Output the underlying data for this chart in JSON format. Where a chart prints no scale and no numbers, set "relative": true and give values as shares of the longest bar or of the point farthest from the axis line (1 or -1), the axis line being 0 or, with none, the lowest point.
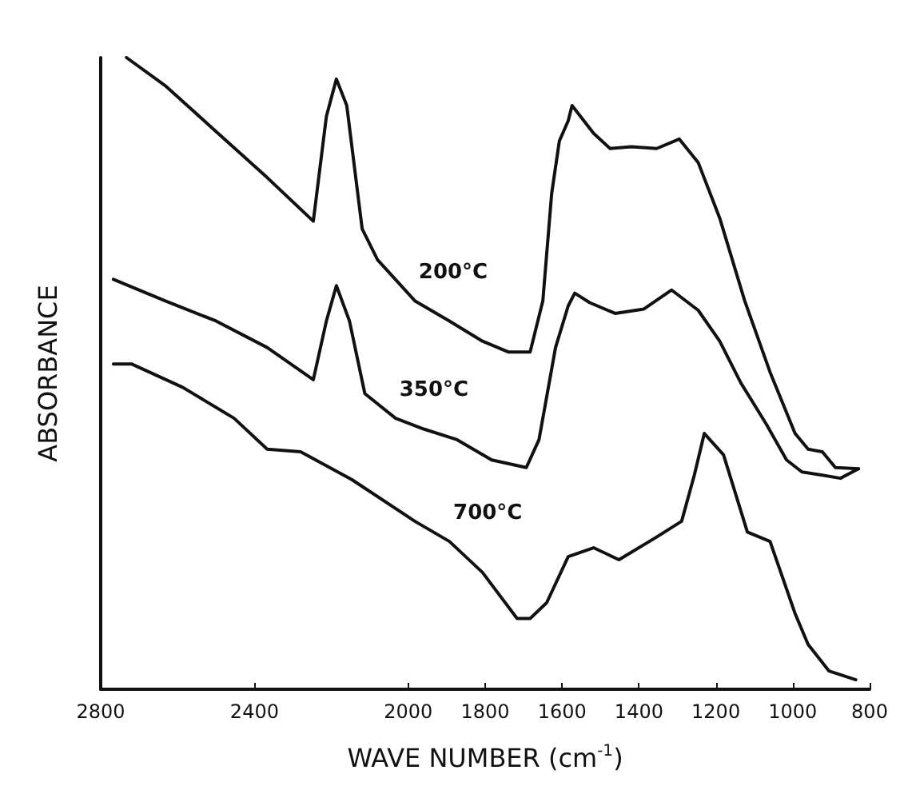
{
  "chart_data": {
    "type": "line",
    "relative": true,
    "xlabel": "WAVE NUMBER (cm$^{-1}$)",
    "ylabel": "ABSORBANCE",
    "xlim": [
      2800,
      800
    ],
    "xticks": [
      2800,
      2400,
      2000,
      1800,
      1600,
      1400,
      1200,
      1000,
      800
    ],
    "grid": false,
    "legend": false,
    "marker": "none",
    "line_style": "solid",
    "series": [
      {
        "name": "200°C",
        "color": "#111111",
        "x": [
          2733,
          2633,
          2500,
          2367,
          2247,
          2213,
          2187,
          2160,
          2120,
          2080,
          1983,
          1893,
          1807,
          1740,
          1683,
          1650,
          1627,
          1607,
          1584,
          1574,
          1518,
          1475,
          1420,
          1354,
          1295,
          1246,
          1190,
          1125,
          1059,
          994,
          960,
          923,
          889,
          829
        ],
        "values": [
          1.0,
          0.956,
          0.883,
          0.81,
          0.741,
          0.907,
          0.966,
          0.924,
          0.729,
          0.68,
          0.615,
          0.583,
          0.551,
          0.534,
          0.534,
          0.615,
          0.785,
          0.868,
          0.9,
          0.924,
          0.88,
          0.856,
          0.859,
          0.856,
          0.871,
          0.834,
          0.746,
          0.615,
          0.502,
          0.405,
          0.38,
          0.376,
          0.351,
          0.349
        ]
      },
      {
        "name": "350°C",
        "color": "#111111",
        "x": [
          2767,
          2633,
          2500,
          2367,
          2247,
          2213,
          2187,
          2153,
          2113,
          2033,
          1960,
          1873,
          1783,
          1693,
          1660,
          1617,
          1584,
          1567,
          1528,
          1462,
          1387,
          1315,
          1246,
          1190,
          1135,
          1069,
          1016,
          976,
          923,
          876,
          829
        ],
        "values": [
          0.649,
          0.615,
          0.583,
          0.541,
          0.49,
          0.583,
          0.639,
          0.583,
          0.468,
          0.429,
          0.412,
          0.395,
          0.363,
          0.351,
          0.395,
          0.541,
          0.607,
          0.627,
          0.612,
          0.595,
          0.602,
          0.632,
          0.6,
          0.551,
          0.485,
          0.42,
          0.363,
          0.344,
          0.339,
          0.334,
          0.349
        ]
      },
      {
        "name": "700°C",
        "color": "#111111",
        "x": [
          2767,
          2720,
          2587,
          2453,
          2367,
          2280,
          2147,
          1983,
          1893,
          1807,
          1717,
          1683,
          1640,
          1584,
          1518,
          1452,
          1354,
          1289,
          1256,
          1230,
          1180,
          1118,
          1059,
          994,
          960,
          906,
          836
        ],
        "values": [
          0.515,
          0.515,
          0.478,
          0.429,
          0.38,
          0.376,
          0.332,
          0.266,
          0.234,
          0.185,
          0.112,
          0.112,
          0.137,
          0.21,
          0.224,
          0.205,
          0.241,
          0.266,
          0.339,
          0.405,
          0.371,
          0.249,
          0.234,
          0.12,
          0.071,
          0.029,
          0.015
        ]
      }
    ]
  }
}
